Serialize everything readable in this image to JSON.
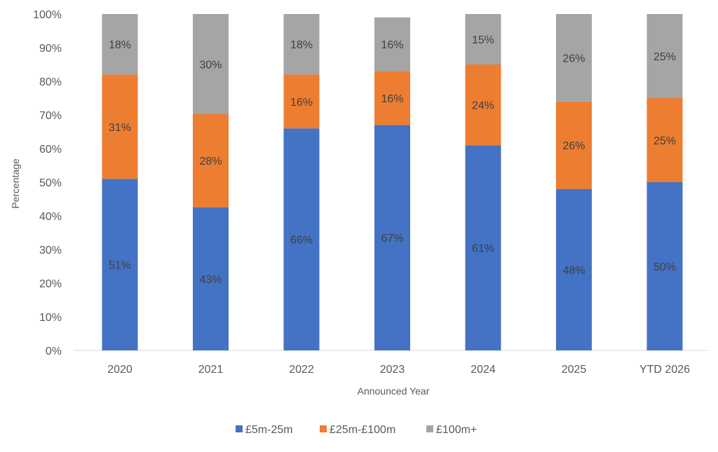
{
  "chart_data": {
    "type": "bar",
    "stacked": true,
    "title": "",
    "xlabel": "Announced Year",
    "ylabel": "Percentage",
    "ylim": [
      0,
      100
    ],
    "yticks": [
      "0%",
      "10%",
      "20%",
      "30%",
      "40%",
      "50%",
      "60%",
      "70%",
      "80%",
      "90%",
      "100%"
    ],
    "categories": [
      "2020",
      "2021",
      "2022",
      "2023",
      "2024",
      "2025",
      "YTD 2026"
    ],
    "series": [
      {
        "name": "£5m-25m",
        "color": "#4472C4",
        "values": [
          51,
          43,
          66,
          67,
          61,
          48,
          50
        ]
      },
      {
        "name": "£25m-£100m",
        "color": "#ED7D31",
        "values": [
          31,
          28,
          16,
          16,
          24,
          26,
          25
        ]
      },
      {
        "name": "£100m+",
        "color": "#A5A5A5",
        "values": [
          18,
          30,
          18,
          16,
          15,
          26,
          25
        ]
      }
    ],
    "data_label_suffix": "%",
    "grid": false,
    "legend": "bottom"
  }
}
